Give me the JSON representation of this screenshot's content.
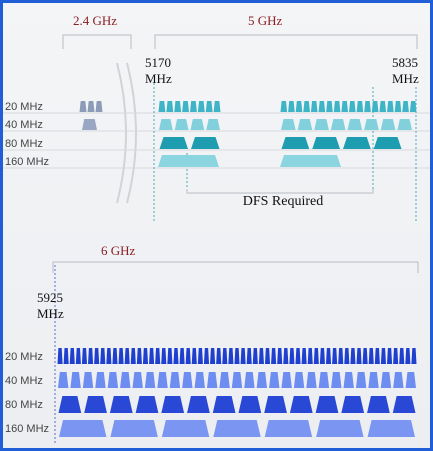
{
  "bands": [
    "2.4 GHz",
    "5 GHz",
    "6 GHz"
  ],
  "frequencies": [
    "5170 MHz",
    "5835 MHz",
    "5925 MHz"
  ],
  "rows_5ghz": [
    "20 MHz",
    "40 MHz",
    "80 MHz",
    "160 MHz"
  ],
  "rows_6ghz": [
    "20 MHz",
    "40 MHz",
    "80 MHz",
    "160 MHz"
  ],
  "dfs_label": "DFS Required"
}
